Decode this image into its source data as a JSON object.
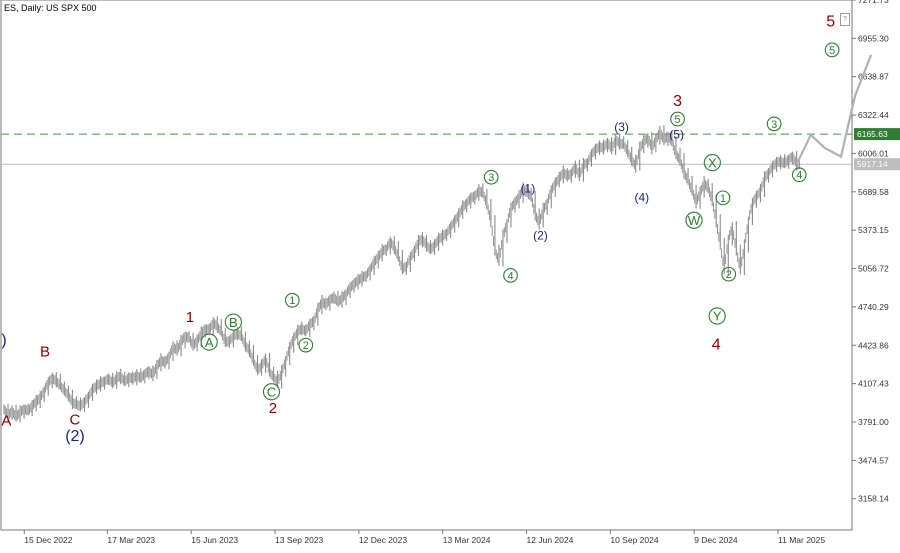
{
  "chart_data": {
    "type": "line",
    "title": "ES, Daily:  US SPX 500",
    "y_ticks": [
      7271.73,
      6955.3,
      6638.87,
      6322.44,
      6006.01,
      5689.58,
      5373.15,
      5056.72,
      4740.29,
      4423.86,
      4107.43,
      3791.0,
      3474.57,
      3158.14
    ],
    "ylim": [
      2900,
      7271.73
    ],
    "x_ticks": [
      "15 Dec 2022",
      "17 Mar 2023",
      "15 Jun 2023",
      "13 Sep 2023",
      "12 Dec 2023",
      "13 Mar 2024",
      "12 Jun 2024",
      "10 Sep 2024",
      "9 Dec 2024",
      "11 Mar 2025"
    ],
    "price_labels": {
      "resistance": "6165.63",
      "current": "5917.14"
    },
    "levels": {
      "resistance": 6165.63,
      "current": 5917.14
    },
    "series": [
      {
        "values": [
          3900,
          3845,
          3880,
          3835,
          3870,
          3900,
          3880,
          3925,
          3960,
          3990,
          4050,
          4120,
          4150,
          4130,
          4090,
          4050,
          4010,
          3950,
          3935,
          3920,
          3960,
          4000,
          4060,
          4090,
          4110,
          4130,
          4150,
          4110,
          4155,
          4170,
          4120,
          4160,
          4145,
          4175,
          4150,
          4190,
          4210,
          4180,
          4250,
          4300,
          4280,
          4330,
          4410,
          4380,
          4450,
          4500,
          4480,
          4420,
          4460,
          4520,
          4560,
          4550,
          4610,
          4580,
          4530,
          4450,
          4460,
          4500,
          4520,
          4500,
          4420,
          4380,
          4290,
          4220,
          4250,
          4320,
          4200,
          4160,
          4120,
          4200,
          4300,
          4410,
          4480,
          4540,
          4560,
          4540,
          4600,
          4620,
          4720,
          4780,
          4760,
          4800,
          4820,
          4780,
          4810,
          4850,
          4900,
          4930,
          4960,
          4980,
          5000,
          5050,
          5110,
          5150,
          5200,
          5220,
          5280,
          5230,
          5150,
          5050,
          5080,
          5150,
          5200,
          5280,
          5300,
          5250,
          5210,
          5250,
          5300,
          5320,
          5350,
          5400,
          5450,
          5500,
          5560,
          5600,
          5640,
          5650,
          5700,
          5680,
          5590,
          5450,
          5200,
          5120,
          5320,
          5430,
          5560,
          5600,
          5650,
          5710,
          5680,
          5650,
          5500,
          5430,
          5540,
          5600,
          5700,
          5760,
          5800,
          5850,
          5820,
          5840,
          5900,
          5820,
          5910,
          5930,
          6000,
          6040,
          6060,
          6050,
          6100,
          6040,
          6120,
          6090,
          6080,
          6020,
          5950,
          5900,
          6050,
          6100,
          6140,
          6050,
          6120,
          6180,
          6120,
          6150,
          6100,
          6000,
          5950,
          5850,
          5780,
          5700,
          5600,
          5680,
          5760,
          5720,
          5620,
          5450,
          5250,
          5050,
          5300,
          5400,
          5200,
          5050,
          5240,
          5450,
          5600,
          5650,
          5700,
          5800,
          5850,
          5900,
          5930,
          5940,
          5920,
          5960,
          5980,
          5917.14
        ],
        "style": "bars",
        "color": "#8a8a8a"
      },
      {
        "values": [
          5917.14,
          6160,
          6050,
          5980,
          6480,
          6820
        ],
        "style": "projection",
        "color": "#b0b0b0"
      }
    ],
    "annotations": [
      {
        "text": ")",
        "color": "#1a237e",
        "size": 16,
        "t": 0,
        "price": 4475
      },
      {
        "text": "A",
        "color": "#8b0000",
        "size": 15,
        "t": 0.5,
        "price": 3805
      },
      {
        "text": "B",
        "color": "#8b0000",
        "size": 15,
        "t": 8.5,
        "price": 4375
      },
      {
        "text": "C",
        "color": "#8b0000",
        "size": 15,
        "t": 14.7,
        "price": 3815
      },
      {
        "text": "(2)",
        "color": "#1a237e",
        "size": 16,
        "t": 14.7,
        "price": 3680
      },
      {
        "text": "1",
        "color": "#8b0000",
        "size": 15,
        "t": 38.5,
        "price": 4660
      },
      {
        "text": "A",
        "color": "#2e7d32",
        "size": 13,
        "t": 42.5,
        "price": 4450,
        "circle": true
      },
      {
        "text": "B",
        "color": "#2e7d32",
        "size": 13,
        "t": 47.5,
        "price": 4615,
        "circle": true
      },
      {
        "text": "1",
        "color": "#2e7d32",
        "size": 11,
        "t": 59.7,
        "price": 4795,
        "circle": true
      },
      {
        "text": "2",
        "color": "#2e7d32",
        "size": 11,
        "t": 62.5,
        "price": 4425,
        "circle": true
      },
      {
        "text": "C",
        "color": "#2e7d32",
        "size": 13,
        "t": 55.4,
        "price": 4040,
        "circle": true
      },
      {
        "text": "2",
        "color": "#8b0000",
        "size": 15,
        "t": 55.7,
        "price": 3910,
        "circle": false
      },
      {
        "text": "3",
        "color": "#2e7d32",
        "size": 11,
        "t": 100.9,
        "price": 5810,
        "circle": true
      },
      {
        "text": "4",
        "color": "#2e7d32",
        "size": 11,
        "t": 104.9,
        "price": 5000,
        "circle": true
      },
      {
        "text": "(1)",
        "color": "#1a237e",
        "size": 12,
        "t": 108.5,
        "price": 5720,
        "circle": false
      },
      {
        "text": "(2)",
        "color": "#1a237e",
        "size": 12,
        "t": 111.1,
        "price": 5330,
        "circle": false
      },
      {
        "text": "(3)",
        "color": "#1a237e",
        "size": 12,
        "t": 127.9,
        "price": 6225,
        "circle": false
      },
      {
        "text": "(4)",
        "color": "#1a237e",
        "size": 12,
        "t": 132.1,
        "price": 5645,
        "circle": false
      },
      {
        "text": "3",
        "color": "#8b0000",
        "size": 16,
        "t": 139.5,
        "price": 6445,
        "circle": false
      },
      {
        "text": "5",
        "color": "#2e7d32",
        "size": 11,
        "t": 139.5,
        "price": 6290,
        "circle": true
      },
      {
        "text": "(5)",
        "color": "#1a237e",
        "size": 12,
        "t": 139.3,
        "price": 6165,
        "circle": false
      },
      {
        "text": "X",
        "color": "#2e7d32",
        "size": 13,
        "t": 146.7,
        "price": 5930,
        "circle": true
      },
      {
        "text": "W",
        "color": "#2e7d32",
        "size": 13,
        "t": 142.9,
        "price": 5455,
        "circle": true
      },
      {
        "text": "1",
        "color": "#2e7d32",
        "size": 11,
        "t": 148.9,
        "price": 5640,
        "circle": true
      },
      {
        "text": "2",
        "color": "#2e7d32",
        "size": 11,
        "t": 150.1,
        "price": 5010,
        "circle": true
      },
      {
        "text": "Y",
        "color": "#2e7d32",
        "size": 13,
        "t": 147.7,
        "price": 4665,
        "circle": true
      },
      {
        "text": "4",
        "color": "#8b0000",
        "size": 16,
        "t": 147.5,
        "price": 4435,
        "circle": false
      },
      {
        "text": "3",
        "color": "#2e7d32",
        "size": 11,
        "t": 159.5,
        "price": 6250,
        "circle": true
      },
      {
        "text": "4",
        "color": "#2e7d32",
        "size": 11,
        "t": 164.7,
        "price": 5830,
        "circle": true
      },
      {
        "text": "5",
        "color": "#2e7d32",
        "size": 11,
        "t": 171.5,
        "price": 6860,
        "circle": true
      },
      {
        "text": "5",
        "color": "#8b0000",
        "size": 16,
        "t": 171.2,
        "price": 7100,
        "circle": false
      }
    ],
    "colors": {
      "resistance": "#3d9a3d",
      "current": "#bdbdbd",
      "axis": "#777777",
      "text": "#333333"
    }
  }
}
